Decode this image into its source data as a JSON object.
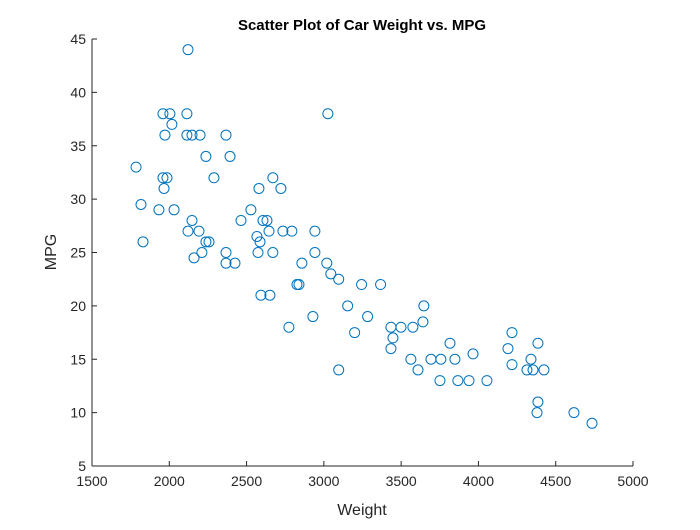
{
  "chart_data": {
    "type": "scatter",
    "title": "Scatter Plot of Car Weight vs. MPG",
    "xlabel": "Weight",
    "ylabel": "MPG",
    "xlim": [
      1500,
      5000
    ],
    "ylim": [
      5,
      45
    ],
    "xticks": [
      1500,
      2000,
      2500,
      3000,
      3500,
      4000,
      4500,
      5000
    ],
    "yticks": [
      5,
      10,
      15,
      20,
      25,
      30,
      35,
      40,
      45
    ],
    "grid": false,
    "marker_color": "#0072BD",
    "points": [
      [
        2121,
        44
      ],
      [
        1785,
        33
      ],
      [
        1817,
        29.5
      ],
      [
        1830,
        26
      ],
      [
        1933,
        29
      ],
      [
        1959,
        38
      ],
      [
        2004,
        38
      ],
      [
        2114,
        38
      ],
      [
        1972,
        36
      ],
      [
        2114,
        36
      ],
      [
        2147,
        36
      ],
      [
        2199,
        36
      ],
      [
        2367,
        36
      ],
      [
        2017,
        37
      ],
      [
        1959,
        32
      ],
      [
        1985,
        32
      ],
      [
        1966,
        31
      ],
      [
        2237,
        34
      ],
      [
        2393,
        34
      ],
      [
        2289,
        32
      ],
      [
        2031,
        29
      ],
      [
        2147,
        28
      ],
      [
        2121,
        27
      ],
      [
        2192,
        27
      ],
      [
        2237,
        26
      ],
      [
        2257,
        26
      ],
      [
        2160,
        24.5
      ],
      [
        2211,
        25
      ],
      [
        2367,
        25
      ],
      [
        2367,
        24
      ],
      [
        2425,
        24
      ],
      [
        2464,
        28
      ],
      [
        2528,
        29
      ],
      [
        2580,
        31
      ],
      [
        2670,
        32
      ],
      [
        2722,
        31
      ],
      [
        2606,
        28
      ],
      [
        2632,
        28
      ],
      [
        2567,
        26.5
      ],
      [
        2587,
        26
      ],
      [
        2574,
        25
      ],
      [
        2645,
        27
      ],
      [
        2735,
        27
      ],
      [
        2793,
        27
      ],
      [
        2670,
        25
      ],
      [
        2593,
        21
      ],
      [
        2651,
        21
      ],
      [
        2774,
        18
      ],
      [
        2858,
        24
      ],
      [
        2826,
        22
      ],
      [
        2839,
        22
      ],
      [
        2942,
        27
      ],
      [
        2942,
        25
      ],
      [
        2929,
        19
      ],
      [
        3019,
        24
      ],
      [
        3045,
        23
      ],
      [
        3096,
        22.5
      ],
      [
        3026,
        38
      ],
      [
        3096,
        14
      ],
      [
        3154,
        20
      ],
      [
        3199,
        17.5
      ],
      [
        3244,
        22
      ],
      [
        3283,
        19
      ],
      [
        3367,
        22
      ],
      [
        3434,
        18
      ],
      [
        3447,
        17
      ],
      [
        3434,
        16
      ],
      [
        3499,
        18
      ],
      [
        3576,
        18
      ],
      [
        3641,
        18.5
      ],
      [
        3647,
        20
      ],
      [
        3563,
        15
      ],
      [
        3609,
        14
      ],
      [
        3693,
        15
      ],
      [
        3757,
        15
      ],
      [
        3848,
        15
      ],
      [
        3816,
        16.5
      ],
      [
        3965,
        15.5
      ],
      [
        3751,
        13
      ],
      [
        3867,
        13
      ],
      [
        3939,
        13
      ],
      [
        4055,
        13
      ],
      [
        4217,
        17.5
      ],
      [
        4191,
        16
      ],
      [
        4217,
        14.5
      ],
      [
        4385,
        16.5
      ],
      [
        4340,
        15
      ],
      [
        4314,
        14
      ],
      [
        4353,
        14
      ],
      [
        4424,
        14
      ],
      [
        4385,
        11
      ],
      [
        4379,
        10
      ],
      [
        4618,
        10
      ],
      [
        4735,
        9
      ]
    ]
  }
}
